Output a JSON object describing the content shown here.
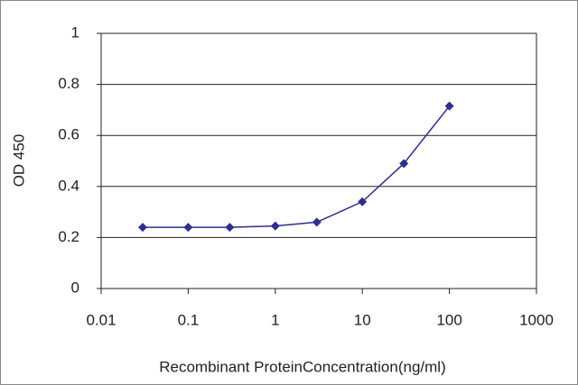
{
  "chart_data": {
    "type": "line",
    "x": [
      0.03,
      0.1,
      0.3,
      1,
      3,
      10,
      30,
      100
    ],
    "values": [
      0.24,
      0.24,
      0.24,
      0.245,
      0.26,
      0.34,
      0.49,
      0.715
    ],
    "color": "#2e2e8c",
    "xlabel": "Recombinant ProteinConcentration(ng/ml)",
    "ylabel": "OD 450",
    "xscale": "log",
    "xlim": [
      0.01,
      1000
    ],
    "xticks": [
      0.01,
      0.1,
      1,
      10,
      100,
      1000
    ],
    "ylim": [
      0,
      1
    ],
    "yticks": [
      0,
      0.2,
      0.4,
      0.6,
      0.8,
      1
    ],
    "grid": true
  }
}
